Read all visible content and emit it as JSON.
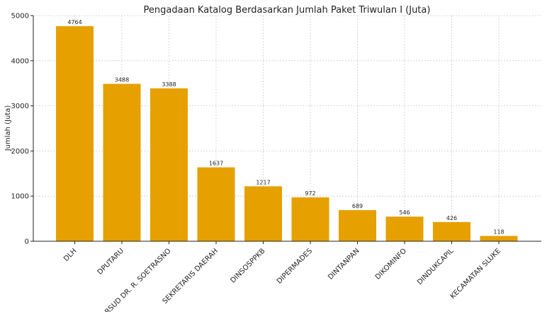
{
  "chart_data": {
    "type": "bar",
    "title": "Pengadaan Katalog Berdasarkan Jumlah Paket Triwulan I (Juta)",
    "xlabel": "",
    "ylabel": "Jumlah (Juta)",
    "ylim": [
      0,
      5000
    ],
    "yticks": [
      0,
      1000,
      2000,
      3000,
      4000,
      5000
    ],
    "grid": true,
    "categories": [
      "DLH",
      "DPUTARU",
      "RSUD DR. R. SOETRASNO",
      "SEKRETARIS DAERAH",
      "DINSOSPPKB",
      "DIPERMADES",
      "DINTANPAN",
      "DIKOMINFO",
      "DINDUKCAPIL",
      "KECAMATAN SLUKE"
    ],
    "values": [
      4764,
      3488,
      3388,
      1637,
      1217,
      972,
      689,
      546,
      426,
      118
    ],
    "bar_color": "#E6A000"
  }
}
